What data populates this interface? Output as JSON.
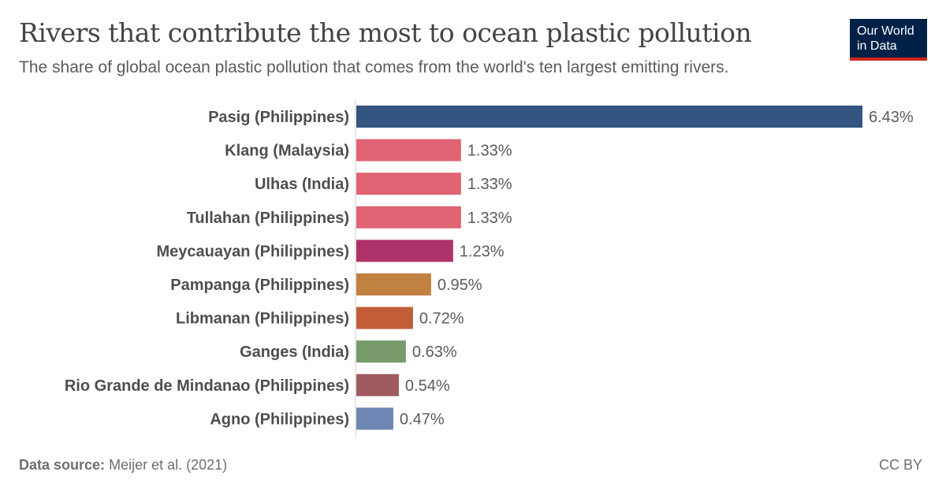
{
  "title": "Rivers that contribute the most to ocean plastic pollution",
  "subtitle": "The share of global ocean plastic pollution that comes from the world's ten largest emitting rivers.",
  "logo": {
    "line1": "Our World",
    "line2": "in Data"
  },
  "footer": {
    "source_label": "Data source:",
    "source": "Meijer et al. (2021)",
    "license": "CC BY"
  },
  "chart_data": {
    "type": "bar",
    "orientation": "horizontal",
    "unit": "%",
    "categories": [
      "Pasig (Philippines)",
      "Klang (Malaysia)",
      "Ulhas (India)",
      "Tullahan (Philippines)",
      "Meycauayan (Philippines)",
      "Pampanga (Philippines)",
      "Libmanan (Philippines)",
      "Ganges (India)",
      "Rio Grande de Mindanao (Philippines)",
      "Agno (Philippines)"
    ],
    "values": [
      6.43,
      1.33,
      1.33,
      1.33,
      1.23,
      0.95,
      0.72,
      0.63,
      0.54,
      0.47
    ],
    "labels": [
      "6.43%",
      "1.33%",
      "1.33%",
      "1.33%",
      "1.23%",
      "0.95%",
      "0.72%",
      "0.63%",
      "0.54%",
      "0.47%"
    ],
    "colors": [
      "#335580",
      "#e06374",
      "#e06374",
      "#e06374",
      "#ad3368",
      "#c08141",
      "#c25d38",
      "#789b6a",
      "#a05b61",
      "#6e86b2"
    ],
    "xlim": [
      0,
      6.43
    ],
    "grid": false
  }
}
